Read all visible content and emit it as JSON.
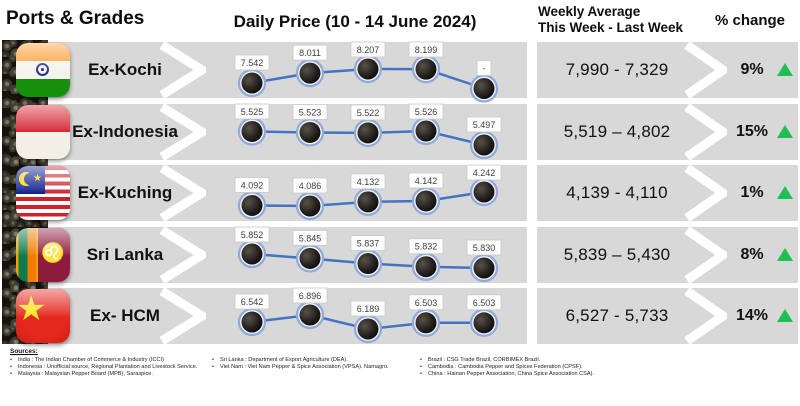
{
  "header": {
    "ports_grades": "Ports & Grades",
    "daily_price": "Daily Price (10 - 14 June 2024)",
    "weekly_avg_line1": "Weekly Average",
    "weekly_avg_line2": "This Week - Last Week",
    "pct_change": "% change"
  },
  "colors": {
    "band_gray": "#d8d8d8",
    "line_blue": "#4472c4",
    "point_ring_blue": "#8ea9db",
    "up_green": "#1fbf55",
    "label_text": "#3f3f3f",
    "label_border": "#c8c8c8"
  },
  "rows": [
    {
      "port": "Ex-Kochi",
      "flag": "india",
      "weekly": "7,990 - 7,329",
      "pct": "9%",
      "direction": "up"
    },
    {
      "port": "Ex-Indonesia",
      "flag": "indonesia",
      "weekly": "5,519 – 4,802",
      "pct": "15%",
      "direction": "up"
    },
    {
      "port": "Ex-Kuching",
      "flag": "malaysia",
      "weekly": "4,139 - 4,110",
      "pct": "1%",
      "direction": "up"
    },
    {
      "port": "Sri Lanka",
      "flag": "srilanka",
      "weekly": "5,839 – 5,430",
      "pct": "8%",
      "direction": "up"
    },
    {
      "port": "Ex- HCM",
      "flag": "vietnam",
      "weekly": "6,527 - 5,733",
      "pct": "14%",
      "direction": "up"
    }
  ],
  "chart_data": [
    {
      "type": "line",
      "name": "Ex-Kochi",
      "x_range": "10 - 14 June 2024",
      "point_labels": [
        "7.542",
        "8.011",
        "8.207",
        "8.199",
        "-"
      ],
      "values": [
        7542,
        8011,
        8207,
        8199,
        null
      ]
    },
    {
      "type": "line",
      "name": "Ex-Indonesia",
      "x_range": "10 - 14 June 2024",
      "point_labels": [
        "5.525",
        "5.523",
        "5.522",
        "5.526",
        "5.497"
      ],
      "values": [
        5525,
        5523,
        5522,
        5526,
        5497
      ]
    },
    {
      "type": "line",
      "name": "Ex-Kuching",
      "x_range": "10 - 14 June 2024",
      "point_labels": [
        "4.092",
        "4.086",
        "4.132",
        "4.142",
        "4.242"
      ],
      "values": [
        4092,
        4086,
        4132,
        4142,
        4242
      ]
    },
    {
      "type": "line",
      "name": "Sri Lanka",
      "x_range": "10 - 14 June 2024",
      "point_labels": [
        "5.852",
        "5.845",
        "5.837",
        "5.832",
        "5.830"
      ],
      "values": [
        5852,
        5845,
        5837,
        5832,
        5830
      ]
    },
    {
      "type": "line",
      "name": "Ex- HCM",
      "x_range": "10 - 14 June 2024",
      "point_labels": [
        "6.542",
        "6.896",
        "6.189",
        "6.503",
        "6.503"
      ],
      "values": [
        6542,
        6896,
        6189,
        6503,
        6503
      ]
    }
  ],
  "sources": {
    "title": "Sources:",
    "col1": [
      "India : The Indian Chamber of Commerce & Industry (ICCI)",
      "Indonesia : Unofficial source, Regional Plantation and Livestock Service.",
      "Malaysia : Malaysian Pepper Board (MPB), Saraspice."
    ],
    "col2": [
      "Sri Lanka : Department of Export Agriculture (DEA).",
      "Viet Nam : Viet Nam Pepper & Spice Association (VPSA). Namagro."
    ],
    "col3": [
      "Brazil : CSG Trade Brazil, CORBIMEX Brazil.",
      "Cambodia : Cambodia Pepper and Spices Federation (CPSF).",
      "China : Hainan Pepper Association, China Spice Association CSA)."
    ]
  }
}
